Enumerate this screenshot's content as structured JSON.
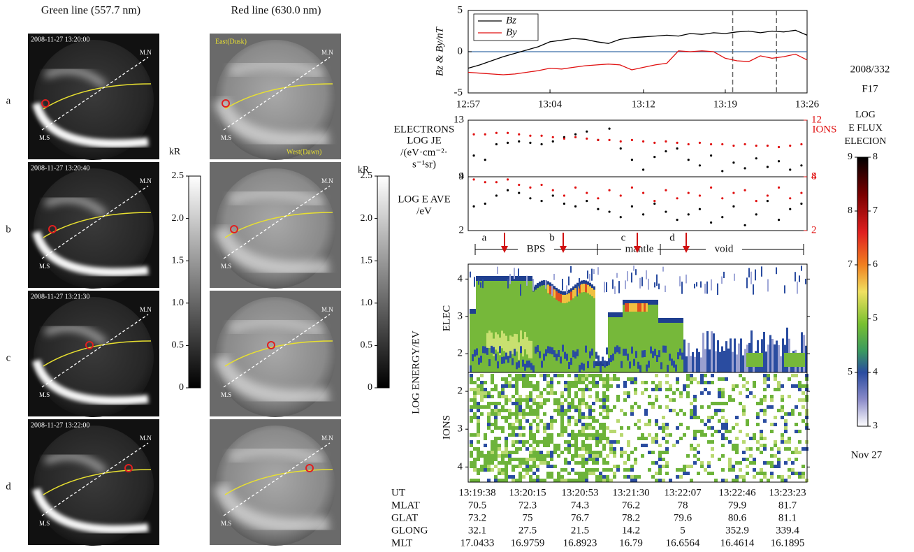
{
  "chart_data": [
    {
      "type": "line",
      "ylabel": "Bz & By/nT",
      "x": [
        "12:57",
        "12:58",
        "12:59",
        "13:00",
        "13:01",
        "13:02",
        "13:03",
        "13:04",
        "13:05",
        "13:06",
        "13:07",
        "13:08",
        "13:09",
        "13:10",
        "13:11",
        "13:12",
        "13:13",
        "13:14",
        "13:15",
        "13:16",
        "13:17",
        "13:18",
        "13:19",
        "13:20",
        "13:21",
        "13:22",
        "13:23",
        "13:24",
        "13:25",
        "13:26"
      ],
      "xlim": [
        "12:57",
        "13:26"
      ],
      "xticks": [
        "12:57",
        "13:04",
        "13:12",
        "13:19",
        "13:26"
      ],
      "ylim": [
        -5,
        5
      ],
      "yticks": [
        -5,
        0,
        5
      ],
      "series": [
        {
          "name": "Bz",
          "color": "#000000",
          "values": [
            -2,
            -1.6,
            -1.1,
            -0.6,
            -0.2,
            0.2,
            0.6,
            1.2,
            1.4,
            1.6,
            1.5,
            1.2,
            1.0,
            1.5,
            1.7,
            1.8,
            1.9,
            2.0,
            1.9,
            2.2,
            2.1,
            2.3,
            2.2,
            2.4,
            2.5,
            2.3,
            2.5,
            2.4,
            2.6,
            2.0
          ]
        },
        {
          "name": "By",
          "color": "#e01010",
          "values": [
            -2.5,
            -2.6,
            -2.7,
            -2.8,
            -2.7,
            -2.5,
            -2.3,
            -2.0,
            -2.1,
            -1.9,
            -1.7,
            -1.6,
            -1.5,
            -1.6,
            -2.2,
            -1.9,
            -1.6,
            -1.4,
            0.1,
            0.0,
            0.1,
            0.0,
            -0.8,
            -1.1,
            -1.2,
            -0.5,
            -0.8,
            -0.6,
            -0.3,
            -1.0
          ]
        }
      ],
      "legend": "upper left"
    },
    {
      "type": "dots",
      "ylabel": [
        "LOG JE",
        "/(eV·cm⁻²·",
        "s⁻¹sr)"
      ],
      "categories": [
        null,
        null,
        null,
        null,
        null,
        null,
        null,
        null,
        null,
        null,
        null,
        null,
        null,
        null,
        null,
        null,
        null,
        null,
        null,
        null,
        null,
        null,
        null,
        null,
        null,
        null,
        null,
        null,
        null,
        null
      ],
      "ylim": [
        9,
        13
      ],
      "yticks": [
        9,
        13
      ],
      "y2lim": [
        8,
        12
      ],
      "y2ticks": [
        8,
        12
      ],
      "series": [
        {
          "name": "ELECTRONS",
          "color": "#000000",
          "values": [
            10.5,
            10.2,
            11.3,
            11.4,
            11.5,
            11.4,
            11.3,
            11.5,
            11.8,
            12.0,
            12.2,
            11.6,
            12.4,
            11.0,
            10.2,
            9.5,
            10.4,
            10.8,
            11.0,
            10.2,
            9.8,
            10.5,
            9.4,
            10.0,
            9.6,
            10.3,
            9.7,
            10.1,
            9.5,
            9.8
          ]
        },
        {
          "name": "IONS",
          "color": "#e01010",
          "axis": "y2",
          "values": [
            11.0,
            11.0,
            11.1,
            11.1,
            11.0,
            10.9,
            10.9,
            10.8,
            10.7,
            10.8,
            10.7,
            10.6,
            10.6,
            10.5,
            10.6,
            10.5,
            10.4,
            10.5,
            10.4,
            10.3,
            10.4,
            10.3,
            10.3,
            10.2,
            10.3,
            10.2,
            10.2,
            10.1,
            10.2,
            10.3
          ]
        }
      ]
    },
    {
      "type": "dots",
      "ylabel": [
        "LOG E AVE",
        "/eV"
      ],
      "categories": [
        null,
        null,
        null,
        null,
        null,
        null,
        null,
        null,
        null,
        null,
        null,
        null,
        null,
        null,
        null,
        null,
        null,
        null,
        null,
        null,
        null,
        null,
        null,
        null,
        null,
        null,
        null,
        null,
        null,
        null
      ],
      "ylim": [
        2,
        4
      ],
      "yticks": [
        2,
        4
      ],
      "y2lim": [
        2,
        4
      ],
      "y2ticks": [
        2,
        4
      ],
      "series": [
        {
          "color": "#000000",
          "values": [
            2.9,
            3.0,
            3.3,
            3.5,
            3.4,
            3.2,
            3.1,
            3.3,
            3.0,
            2.9,
            3.1,
            2.8,
            2.7,
            2.5,
            2.9,
            2.6,
            3.0,
            2.7,
            2.4,
            2.6,
            2.8,
            2.3,
            2.5,
            2.9,
            2.2,
            2.6,
            3.1,
            2.4,
            2.8,
            3.0
          ]
        },
        {
          "color": "#e01010",
          "axis": "y2",
          "values": [
            3.9,
            3.8,
            3.8,
            3.9,
            3.7,
            3.6,
            3.7,
            3.5,
            3.3,
            3.6,
            3.4,
            3.2,
            3.5,
            3.3,
            3.6,
            3.4,
            3.1,
            3.5,
            3.2,
            3.4,
            3.3,
            3.6,
            3.2,
            3.4,
            3.5,
            3.1,
            3.3,
            3.6,
            3.2,
            3.4
          ]
        }
      ]
    },
    {
      "type": "spectrogram",
      "ylabel": "ELEC",
      "axis_label": "LOG ENERGY/EV",
      "ylim": [
        1.5,
        4.4
      ],
      "yticks": [
        2,
        3,
        4
      ]
    },
    {
      "type": "spectrogram",
      "ylabel": "IONS",
      "ylim": [
        4.4,
        1.5
      ],
      "yticks": [
        2,
        3,
        4
      ]
    },
    {
      "type": "colorbar",
      "ylabel": "kR",
      "ylim": [
        0,
        2.5
      ],
      "yticks": [
        0,
        0.5,
        {
          "value": 1,
          "label": "1.0"
        },
        1.5,
        {
          "value": 2,
          "label": "2.0"
        },
        2.5
      ]
    },
    {
      "type": "colorbar",
      "ylabel": "kR",
      "ylim": [
        0,
        2.5
      ],
      "yticks": [
        0,
        0.5,
        {
          "value": 1,
          "label": "1.0"
        },
        1.5,
        {
          "value": 2,
          "label": "2.0"
        },
        2.5
      ]
    },
    {
      "type": "colorbar",
      "title": [
        "LOG",
        "E FLUX",
        "ELECION"
      ],
      "ylim": [
        4,
        9
      ],
      "yticks": [
        9,
        8,
        7,
        5
      ],
      "y2lim": [
        3,
        8
      ],
      "y2ticks": [
        8,
        7,
        6,
        5,
        4,
        3
      ]
    }
  ],
  "images": {
    "green_title": "Green line (557.7 nm)",
    "red_title": "Red line (630.0 nm)",
    "mn": "M.N",
    "ms": "M.S",
    "east": "East(Dusk)",
    "west": "West(Dawn)",
    "frames": [
      {
        "label": "a",
        "time": "2008-11-27 13:20:00"
      },
      {
        "label": "b",
        "time": "2008-11-27 13:20:40"
      },
      {
        "label": "c",
        "time": "2008-11-27 13:21:30"
      },
      {
        "label": "d",
        "time": "2008-11-27 13:22:00"
      }
    ]
  },
  "regions": {
    "labels": [
      "a",
      "b",
      "c",
      "d"
    ],
    "names": [
      "BPS",
      "mantle",
      "void"
    ]
  },
  "satellite": {
    "date": "2008/332",
    "name": "F17",
    "day": "Nov 27"
  },
  "table": {
    "rows": [
      {
        "label": "UT",
        "values": [
          "13:19:38",
          "13:20:15",
          "13:20:53",
          "13:21:30",
          "13:22:07",
          "13:22:46",
          "13:23:23"
        ]
      },
      {
        "label": "MLAT",
        "values": [
          "70.5",
          "72.3",
          "74.3",
          "76.2",
          "78",
          "79.9",
          "81.7"
        ]
      },
      {
        "label": "GLAT",
        "values": [
          "73.2",
          "75",
          "76.7",
          "78.2",
          "79.6",
          "80.6",
          "81.1"
        ]
      },
      {
        "label": "GLONG",
        "values": [
          "32.1",
          "27.5",
          "21.5",
          "14.2",
          "5",
          "352.9",
          "339.4"
        ]
      },
      {
        "label": "MLT",
        "values": [
          "17.0433",
          "16.9759",
          "16.8923",
          "16.79",
          "16.6564",
          "16.4614",
          "16.1895"
        ]
      }
    ]
  }
}
